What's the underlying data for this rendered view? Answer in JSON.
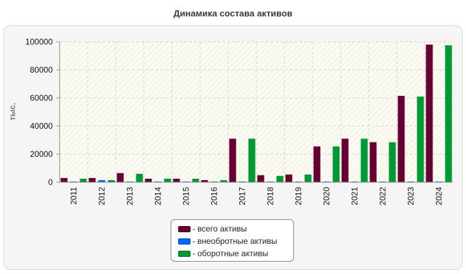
{
  "chart_data": {
    "type": "bar",
    "title": "Динамика состава активов",
    "ylabel": "тыс.",
    "xlabel": "",
    "ylim": [
      0,
      100000
    ],
    "yticks": [
      0,
      20000,
      40000,
      60000,
      80000,
      100000
    ],
    "grid": true,
    "legend_position": "bottom-center",
    "categories": [
      "2011",
      "2012",
      "2013",
      "2014",
      "2015",
      "2016",
      "2017",
      "2018",
      "2019",
      "2020",
      "2021",
      "2022",
      "2023",
      "2024"
    ],
    "series": [
      {
        "name": "всего активы",
        "color": "#660033",
        "values": [
          3000,
          3000,
          6500,
          2500,
          2500,
          1500,
          31000,
          5000,
          5500,
          25500,
          31000,
          28500,
          61500,
          98000
        ]
      },
      {
        "name": "внеобротные активы",
        "color": "#0066ff",
        "values": [
          500,
          1500,
          500,
          500,
          500,
          500,
          500,
          500,
          500,
          500,
          500,
          500,
          500,
          500
        ]
      },
      {
        "name": "оборотные активы",
        "color": "#009933",
        "values": [
          2500,
          1500,
          6000,
          2500,
          2500,
          1500,
          31000,
          4500,
          5500,
          25500,
          31000,
          28500,
          61000,
          97500
        ]
      }
    ]
  },
  "legend": {
    "dash": "-",
    "items": [
      {
        "label": "всего активы",
        "color": "#660033"
      },
      {
        "label": "внеобротные активы",
        "color": "#0066ff"
      },
      {
        "label": "оборотные активы",
        "color": "#009933"
      }
    ]
  }
}
